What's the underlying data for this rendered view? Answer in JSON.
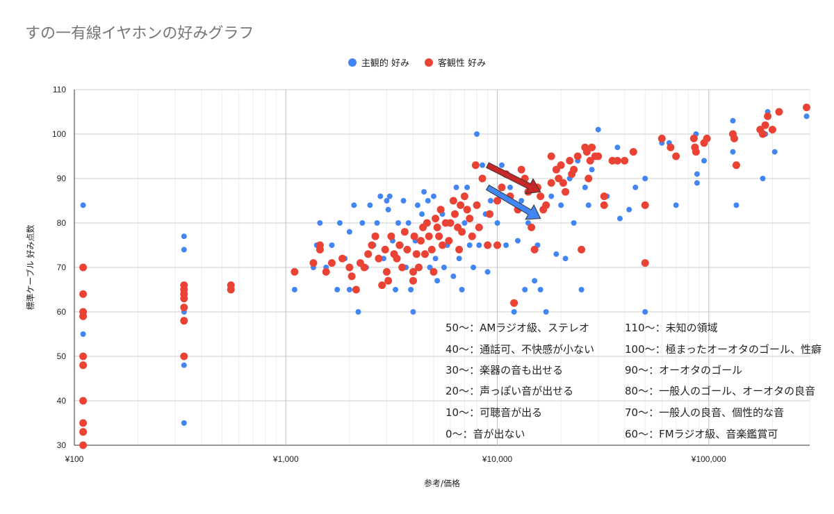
{
  "chart_data": {
    "type": "scatter",
    "title": "すの一有線イヤホンの好みグラフ",
    "xlabel": "参考/価格",
    "ylabel": "標準ケーブル 好み点数",
    "x_scale": "log",
    "xlim": [
      100,
      300000
    ],
    "ylim": [
      30,
      110
    ],
    "x_ticks": [
      {
        "value": 100,
        "label": "¥100"
      },
      {
        "value": 1000,
        "label": "¥1,000"
      },
      {
        "value": 10000,
        "label": "¥10,000"
      },
      {
        "value": 100000,
        "label": "¥100,000"
      }
    ],
    "y_ticks": [
      30,
      40,
      50,
      60,
      70,
      80,
      90,
      100,
      110
    ],
    "grid": true,
    "legend_position": "top",
    "series": [
      {
        "name": "主観的 好み",
        "color": "#4285f4",
        "points": [
          [
            110,
            84
          ],
          [
            110,
            55
          ],
          [
            330,
            77
          ],
          [
            330,
            74
          ],
          [
            330,
            48
          ],
          [
            330,
            35
          ],
          [
            330,
            60
          ],
          [
            1100,
            65
          ],
          [
            1350,
            70
          ],
          [
            1400,
            75
          ],
          [
            1450,
            80
          ],
          [
            1550,
            70
          ],
          [
            1650,
            75
          ],
          [
            1750,
            65
          ],
          [
            1800,
            80
          ],
          [
            1900,
            72
          ],
          [
            2000,
            78
          ],
          [
            2000,
            65
          ],
          [
            2100,
            84
          ],
          [
            2200,
            60
          ],
          [
            2300,
            80
          ],
          [
            2400,
            70
          ],
          [
            2500,
            84
          ],
          [
            2600,
            75
          ],
          [
            2700,
            80
          ],
          [
            2800,
            86
          ],
          [
            2900,
            72
          ],
          [
            3000,
            85
          ],
          [
            3050,
            83
          ],
          [
            3100,
            86
          ],
          [
            3200,
            76
          ],
          [
            3300,
            65
          ],
          [
            3400,
            80
          ],
          [
            3500,
            75
          ],
          [
            3600,
            85
          ],
          [
            3700,
            70
          ],
          [
            3800,
            80
          ],
          [
            3900,
            65
          ],
          [
            4000,
            60
          ],
          [
            4100,
            76
          ],
          [
            4200,
            84
          ],
          [
            4400,
            82
          ],
          [
            4500,
            87
          ],
          [
            4700,
            85
          ],
          [
            4800,
            70
          ],
          [
            5000,
            86
          ],
          [
            5100,
            72
          ],
          [
            5200,
            67
          ],
          [
            5300,
            77
          ],
          [
            5500,
            82
          ],
          [
            5600,
            70
          ],
          [
            5800,
            75
          ],
          [
            6000,
            80
          ],
          [
            6200,
            68
          ],
          [
            6400,
            88
          ],
          [
            6600,
            72
          ],
          [
            6800,
            65
          ],
          [
            7000,
            80
          ],
          [
            7200,
            88
          ],
          [
            7400,
            75
          ],
          [
            7700,
            70
          ],
          [
            8000,
            100
          ],
          [
            8200,
            75
          ],
          [
            8500,
            93
          ],
          [
            8800,
            82
          ],
          [
            9000,
            69
          ],
          [
            9300,
            85
          ],
          [
            10000,
            80
          ],
          [
            10500,
            93
          ],
          [
            11000,
            75
          ],
          [
            11500,
            88
          ],
          [
            12000,
            60
          ],
          [
            12500,
            76
          ],
          [
            13000,
            85
          ],
          [
            13500,
            65
          ],
          [
            14000,
            80
          ],
          [
            15000,
            67
          ],
          [
            15500,
            75
          ],
          [
            16000,
            65
          ],
          [
            17000,
            60
          ],
          [
            18000,
            86
          ],
          [
            19000,
            73
          ],
          [
            20000,
            84
          ],
          [
            21000,
            72
          ],
          [
            22000,
            90
          ],
          [
            23000,
            80
          ],
          [
            24000,
            94
          ],
          [
            25000,
            65
          ],
          [
            26000,
            88
          ],
          [
            27000,
            84
          ],
          [
            28000,
            92
          ],
          [
            30000,
            101
          ],
          [
            33000,
            86
          ],
          [
            37000,
            97
          ],
          [
            38000,
            81
          ],
          [
            42000,
            83
          ],
          [
            45000,
            88
          ],
          [
            50000,
            90
          ],
          [
            50000,
            60
          ],
          [
            60000,
            98
          ],
          [
            65000,
            98
          ],
          [
            70000,
            84
          ],
          [
            87000,
            100
          ],
          [
            88000,
            91
          ],
          [
            88000,
            89
          ],
          [
            95000,
            94
          ],
          [
            130000,
            103
          ],
          [
            130000,
            96
          ],
          [
            135000,
            84
          ],
          [
            180000,
            90
          ],
          [
            185000,
            100
          ],
          [
            190000,
            105
          ],
          [
            205000,
            96
          ],
          [
            290000,
            104
          ]
        ]
      },
      {
        "name": "客観性 好み",
        "color": "#ea4335",
        "points": [
          [
            110,
            70
          ],
          [
            110,
            64
          ],
          [
            110,
            60
          ],
          [
            110,
            59
          ],
          [
            110,
            50
          ],
          [
            110,
            48
          ],
          [
            110,
            40
          ],
          [
            110,
            35
          ],
          [
            110,
            33
          ],
          [
            110,
            30
          ],
          [
            330,
            66
          ],
          [
            330,
            65
          ],
          [
            330,
            64
          ],
          [
            330,
            63
          ],
          [
            330,
            61
          ],
          [
            330,
            58
          ],
          [
            330,
            50
          ],
          [
            550,
            66
          ],
          [
            550,
            65
          ],
          [
            1100,
            69
          ],
          [
            1350,
            71
          ],
          [
            1450,
            75
          ],
          [
            1450,
            74
          ],
          [
            1550,
            69
          ],
          [
            1650,
            71
          ],
          [
            1850,
            72
          ],
          [
            2000,
            70
          ],
          [
            2050,
            68
          ],
          [
            2150,
            65
          ],
          [
            2250,
            71
          ],
          [
            2350,
            70
          ],
          [
            2450,
            73
          ],
          [
            2550,
            75
          ],
          [
            2650,
            77
          ],
          [
            2750,
            72
          ],
          [
            2850,
            66
          ],
          [
            2950,
            74
          ],
          [
            3000,
            69
          ],
          [
            3050,
            67
          ],
          [
            3150,
            77
          ],
          [
            3250,
            73
          ],
          [
            3350,
            72
          ],
          [
            3450,
            75
          ],
          [
            3550,
            70
          ],
          [
            3650,
            78
          ],
          [
            3750,
            74
          ],
          [
            4000,
            67
          ],
          [
            4000,
            69
          ],
          [
            4050,
            77
          ],
          [
            4150,
            73
          ],
          [
            4250,
            70
          ],
          [
            4350,
            76
          ],
          [
            4450,
            79
          ],
          [
            4550,
            73
          ],
          [
            4650,
            80
          ],
          [
            4750,
            77
          ],
          [
            4900,
            74
          ],
          [
            5000,
            69
          ],
          [
            5100,
            81
          ],
          [
            5200,
            79
          ],
          [
            5300,
            77
          ],
          [
            5400,
            83
          ],
          [
            5500,
            75
          ],
          [
            5700,
            80
          ],
          [
            5900,
            76
          ],
          [
            6000,
            80
          ],
          [
            6200,
            85
          ],
          [
            6300,
            82
          ],
          [
            6500,
            79
          ],
          [
            6600,
            74
          ],
          [
            6700,
            84
          ],
          [
            6800,
            78
          ],
          [
            7000,
            86
          ],
          [
            7200,
            83
          ],
          [
            7400,
            81
          ],
          [
            7600,
            77
          ],
          [
            7900,
            93
          ],
          [
            8000,
            84
          ],
          [
            8200,
            79
          ],
          [
            8500,
            90
          ],
          [
            9000,
            75
          ],
          [
            9200,
            82
          ],
          [
            10000,
            85
          ],
          [
            10000,
            75
          ],
          [
            10500,
            88
          ],
          [
            11000,
            91
          ],
          [
            11500,
            86
          ],
          [
            12000,
            62
          ],
          [
            12500,
            83
          ],
          [
            13000,
            92
          ],
          [
            13500,
            90
          ],
          [
            14000,
            87
          ],
          [
            14500,
            79
          ],
          [
            15000,
            74
          ],
          [
            15500,
            88
          ],
          [
            16000,
            86
          ],
          [
            16500,
            83
          ],
          [
            17000,
            84
          ],
          [
            18000,
            95
          ],
          [
            18000,
            89
          ],
          [
            19000,
            92
          ],
          [
            19500,
            90
          ],
          [
            20000,
            93
          ],
          [
            20500,
            89
          ],
          [
            21000,
            87
          ],
          [
            22000,
            94
          ],
          [
            22500,
            91
          ],
          [
            23000,
            92
          ],
          [
            24000,
            95
          ],
          [
            25000,
            74
          ],
          [
            26000,
            97
          ],
          [
            26500,
            96
          ],
          [
            27000,
            90
          ],
          [
            27500,
            94
          ],
          [
            28000,
            97
          ],
          [
            29000,
            95
          ],
          [
            30000,
            95
          ],
          [
            32000,
            86
          ],
          [
            32000,
            84
          ],
          [
            35000,
            94
          ],
          [
            37000,
            94
          ],
          [
            40000,
            94
          ],
          [
            44000,
            96
          ],
          [
            50000,
            84
          ],
          [
            50000,
            71
          ],
          [
            60000,
            99
          ],
          [
            66000,
            97
          ],
          [
            70000,
            95
          ],
          [
            85000,
            99
          ],
          [
            86000,
            97
          ],
          [
            87000,
            96
          ],
          [
            95000,
            98
          ],
          [
            98000,
            99
          ],
          [
            130000,
            100
          ],
          [
            132000,
            99
          ],
          [
            135000,
            93
          ],
          [
            175000,
            101
          ],
          [
            180000,
            100
          ],
          [
            185000,
            102
          ],
          [
            190000,
            104
          ],
          [
            200000,
            101
          ],
          [
            215000,
            105
          ],
          [
            290000,
            106
          ]
        ]
      }
    ],
    "annotations_left": [
      "50～：AMラジオ級、ステレオ",
      "40～：通話可、不快感が小ない",
      "30～：楽器の音も出せる",
      "20～：声っぽい音が出せる",
      "10～：可聴音が出る",
      "0～：音が出ない"
    ],
    "annotations_right": [
      "110～：未知の領域",
      "100～：極まったオーオタのゴール、性癖",
      "90～：オーオタのゴール",
      "80～：一般人のゴール、オーオタの良音",
      "70～：一般人の良音、個性的な音",
      "60～：FMラジオ級、音楽鑑賞可"
    ],
    "arrows": [
      {
        "color": "#c62828",
        "from": [
          9000,
          93
        ],
        "to": [
          16000,
          87
        ]
      },
      {
        "color": "#4285f4",
        "from": [
          9000,
          88
        ],
        "to": [
          16000,
          81
        ]
      }
    ]
  }
}
